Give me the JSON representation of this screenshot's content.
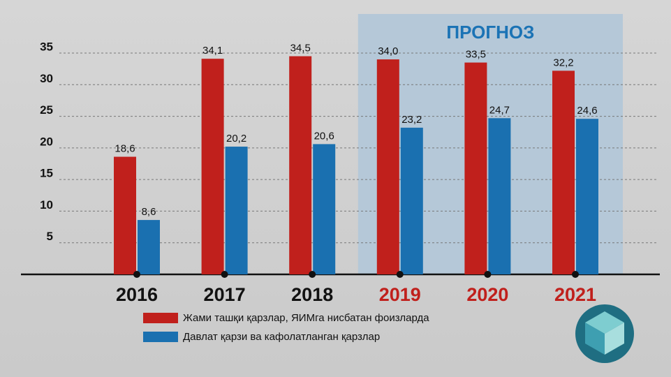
{
  "chart_data": {
    "type": "bar",
    "categories": [
      "2016",
      "2017",
      "2018",
      "2019",
      "2020",
      "2021"
    ],
    "series": [
      {
        "name": "Жами ташқи қарзлар, ЯИМга нисбатан фоизларда",
        "color": "#c0201c",
        "values": [
          18.6,
          34.1,
          34.5,
          34.0,
          33.5,
          32.2
        ],
        "value_labels": [
          "18,6",
          "34,1",
          "34,5",
          "34,0",
          "33,5",
          "32,2"
        ]
      },
      {
        "name": "Давлат қарзи ва кафолатланган қарзлар",
        "color": "#1a70b0",
        "values": [
          8.6,
          20.2,
          20.6,
          23.2,
          24.7,
          24.6
        ],
        "value_labels": [
          "8,6",
          "20,2",
          "20,6",
          "23,2",
          "24,7",
          "24,6"
        ]
      }
    ],
    "ylim": [
      0,
      35
    ],
    "yticks": [
      5,
      10,
      15,
      20,
      25,
      30,
      35
    ],
    "grid": true,
    "forecast": {
      "label": "ПРОГНОЗ",
      "start": "2019"
    }
  }
}
